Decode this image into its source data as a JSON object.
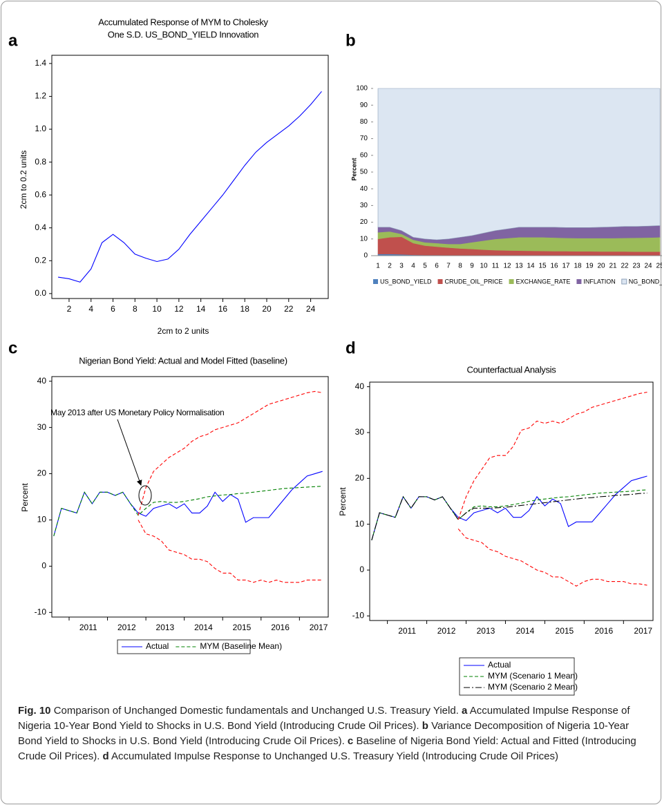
{
  "chart_data": [
    {
      "type": "line",
      "panel": "a",
      "title": [
        "Accumulated Response of MYM to Cholesky",
        "One S.D. US_BOND_YIELD Innovation"
      ],
      "y_label": "2cm to 0.2 units",
      "x_label": "2cm to 2 units",
      "x": [
        1,
        2,
        3,
        4,
        5,
        6,
        7,
        8,
        9,
        10,
        11,
        12,
        13,
        14,
        15,
        16,
        17,
        18,
        19,
        20,
        21,
        22,
        23,
        24,
        25
      ],
      "series": [
        {
          "color": "#0000ff",
          "dash": "solid",
          "values": [
            0.1,
            0.09,
            0.07,
            0.15,
            0.31,
            0.36,
            0.31,
            0.24,
            0.215,
            0.195,
            0.21,
            0.27,
            0.36,
            0.44,
            0.52,
            0.6,
            0.69,
            0.78,
            0.86,
            0.92,
            0.97,
            1.02,
            1.08,
            1.15,
            1.23
          ]
        }
      ],
      "xlim": [
        0.43,
        25.6
      ],
      "xticks": [
        2,
        4,
        6,
        8,
        10,
        12,
        14,
        16,
        18,
        20,
        22,
        24
      ],
      "ylim": [
        -0.03,
        1.45
      ],
      "yticks": [
        {
          "value": 0,
          "label": "0.0"
        },
        0.2,
        0.4,
        0.6,
        0.8,
        {
          "value": 1,
          "label": "1.0"
        },
        1.2,
        1.4
      ]
    },
    {
      "type": "stacked_area",
      "panel": "b",
      "y_label": "Percent",
      "categories": [
        1,
        2,
        3,
        4,
        5,
        6,
        7,
        8,
        9,
        10,
        11,
        12,
        13,
        14,
        15,
        16,
        17,
        18,
        19,
        20,
        21,
        22,
        23,
        24,
        25
      ],
      "series": [
        {
          "name": "US_BOND_YIELD",
          "color": "#4f81bd",
          "values": [
            1,
            1,
            0.8,
            0.5,
            0.4,
            0.4,
            0.3,
            0.3,
            0.3,
            0.3,
            0.3,
            0.3,
            0.3,
            0.3,
            0.3,
            0.3,
            0.3,
            0.3,
            0.3,
            0.3,
            0.3,
            0.3,
            0.3,
            0.3,
            0.3
          ]
        },
        {
          "name": "CRUDE_OIL_PRICE",
          "color": "#c0504d",
          "values": [
            9,
            10,
            10.5,
            7,
            5.6,
            5,
            4.5,
            4,
            3.7,
            3.3,
            3,
            2.8,
            2.7,
            2.6,
            2.5,
            2.4,
            2.4,
            2.3,
            2.3,
            2.2,
            2.2,
            2.2,
            2.1,
            2.1,
            2.1
          ]
        },
        {
          "name": "EXCHANGE_RATE",
          "color": "#9bbb59",
          "values": [
            4,
            3.5,
            1.7,
            2,
            2,
            2.1,
            2.2,
            2.7,
            4,
            5.4,
            6.7,
            7.4,
            8,
            8.1,
            8.2,
            8.1,
            7.9,
            7.9,
            7.9,
            8,
            8,
            8.1,
            8.3,
            8.4,
            8.6
          ]
        },
        {
          "name": "INFLATION",
          "color": "#8064a2",
          "values": [
            3,
            2.5,
            2,
            1.5,
            2,
            2,
            3,
            4,
            4,
            4.5,
            5,
            5.5,
            6,
            6,
            6,
            6.2,
            6.2,
            6.3,
            6.3,
            6.5,
            6.7,
            6.9,
            6.8,
            6.9,
            7
          ]
        },
        {
          "name": "NG_BOND_YIELD",
          "color": "#dce6f2",
          "values": [
            83,
            83,
            85,
            89,
            90,
            90.5,
            90,
            89,
            88,
            86.5,
            85,
            84,
            83,
            83,
            83,
            83,
            83.2,
            83.2,
            83.2,
            83,
            82.8,
            82.5,
            82.5,
            82.3,
            82
          ]
        }
      ],
      "ylim": [
        0,
        100
      ],
      "yticks": [
        0,
        10,
        20,
        30,
        40,
        50,
        60,
        70,
        80,
        90,
        100
      ]
    },
    {
      "type": "line",
      "panel": "c",
      "title": "Nigerian Bond Yield: Actual and Model Fitted (baseline)",
      "y_label": "Percent",
      "annotation": "May 2013 after US Monetary Policy Normalisation",
      "x": [
        2010.6,
        2010.8,
        2011.0,
        2011.2,
        2011.4,
        2011.6,
        2011.8,
        2012.0,
        2012.2,
        2012.4,
        2012.6,
        2012.8,
        2013.0,
        2013.2,
        2013.4,
        2013.6,
        2013.8,
        2014.0,
        2014.2,
        2014.4,
        2014.6,
        2014.8,
        2015.0,
        2015.2,
        2015.4,
        2015.6,
        2015.8,
        2016.0,
        2016.2,
        2016.4,
        2016.6,
        2016.8,
        2017.0,
        2017.2,
        2017.4,
        2017.6
      ],
      "series": [
        {
          "name": "Actual",
          "color": "#0000ff",
          "dash": "solid",
          "values": [
            6.5,
            12.5,
            12,
            11.5,
            16,
            13.5,
            16,
            16,
            15.3,
            16,
            13.5,
            11.5,
            10.8,
            12.5,
            13,
            13.5,
            12.5,
            13.5,
            11.5,
            11.5,
            13,
            16,
            14,
            15.5,
            14.5,
            9.5,
            10.5,
            10.5,
            10.5,
            12.5,
            14.5,
            16.5,
            18,
            19.5,
            20,
            20.5
          ]
        },
        {
          "name": "MYM (Baseline Mean)",
          "color": "#008000",
          "dash": "dashed",
          "values": [
            6.5,
            12.5,
            12,
            11.5,
            16,
            13.5,
            16,
            16,
            15.3,
            16,
            13.5,
            11,
            12.5,
            13.8,
            14,
            13.8,
            13.8,
            14,
            14.3,
            14.6,
            15,
            15.2,
            15.4,
            15.5,
            15.7,
            15.8,
            16,
            16.2,
            16.4,
            16.6,
            16.8,
            16.9,
            17,
            17.1,
            17.2,
            17.3
          ]
        },
        {
          "color": "#ff0000",
          "dash": "dashed",
          "values": [
            null,
            null,
            null,
            null,
            null,
            null,
            null,
            null,
            null,
            null,
            null,
            11,
            17,
            20.5,
            22,
            23.5,
            24.5,
            25.5,
            27,
            28,
            28.5,
            29.5,
            30,
            30.5,
            31,
            32,
            33,
            34,
            35,
            35.5,
            36,
            36.5,
            37,
            37.5,
            37.8,
            37.5
          ]
        },
        {
          "color": "#ff0000",
          "dash": "dashed",
          "values": [
            null,
            null,
            null,
            null,
            null,
            null,
            null,
            null,
            null,
            null,
            null,
            10,
            7,
            6.5,
            5.5,
            3.5,
            3,
            2.5,
            1.5,
            1.5,
            1,
            -0.5,
            -1.5,
            -1.5,
            -3,
            -3,
            -3.5,
            -3,
            -3.5,
            -3,
            -3.5,
            -3.5,
            -3.5,
            -3,
            -3,
            -3
          ]
        }
      ],
      "xlim": [
        2010.55,
        2017.75
      ],
      "xticks": [
        2011,
        2012,
        2013,
        2014,
        2015,
        2016,
        2017
      ],
      "ylim": [
        -11,
        41
      ],
      "yticks": [
        -10,
        0,
        10,
        20,
        30,
        40
      ]
    },
    {
      "type": "line",
      "panel": "d",
      "title": "Counterfactual Analysis",
      "y_label": "Percent",
      "x": [
        2010.6,
        2010.8,
        2011.0,
        2011.2,
        2011.4,
        2011.6,
        2011.8,
        2012.0,
        2012.2,
        2012.4,
        2012.6,
        2012.8,
        2013.0,
        2013.2,
        2013.4,
        2013.6,
        2013.8,
        2014.0,
        2014.2,
        2014.4,
        2014.6,
        2014.8,
        2015.0,
        2015.2,
        2015.4,
        2015.6,
        2015.8,
        2016.0,
        2016.2,
        2016.4,
        2016.6,
        2016.8,
        2017.0,
        2017.2,
        2017.4,
        2017.6
      ],
      "series": [
        {
          "name": "Actual",
          "color": "#0000ff",
          "dash": "solid",
          "values": [
            6.5,
            12.5,
            12,
            11.5,
            16,
            13.5,
            16,
            16,
            15.3,
            16,
            13.5,
            11.5,
            10.8,
            12.5,
            13,
            13.5,
            12.5,
            13.5,
            11.5,
            11.5,
            13,
            16,
            14,
            15.5,
            14.5,
            9.5,
            10.5,
            10.5,
            10.5,
            12.5,
            14.5,
            16.5,
            18,
            19.5,
            20,
            20.5
          ]
        },
        {
          "name": "MYM (Scenario 1 Mean)",
          "color": "#008000",
          "dash": "dashed",
          "values": [
            6.5,
            12.5,
            12,
            11.5,
            16,
            13.5,
            16,
            16,
            15.3,
            16,
            13.5,
            11,
            12.5,
            13.8,
            14,
            13.8,
            13.8,
            14,
            14.3,
            14.6,
            15,
            15.3,
            15.5,
            15.7,
            15.9,
            16,
            16.2,
            16.4,
            16.6,
            16.8,
            16.9,
            17,
            17.1,
            17.2,
            17.4,
            17.5
          ]
        },
        {
          "name": "MYM (Scenario 2 Mean)",
          "color": "#000000",
          "dash": "dashdot",
          "values": [
            6.5,
            12.5,
            12,
            11.5,
            16,
            13.5,
            16,
            16,
            15.3,
            16,
            13.5,
            11,
            12.5,
            13.5,
            13.5,
            13.5,
            13.6,
            13.7,
            13.9,
            14.1,
            14.3,
            14.5,
            14.7,
            14.9,
            15.1,
            15.3,
            15.5,
            15.7,
            15.8,
            16,
            16.1,
            16.3,
            16.4,
            16.5,
            16.7,
            16.8
          ]
        },
        {
          "color": "#ff0000",
          "dash": "dashed",
          "values": [
            null,
            null,
            null,
            null,
            null,
            null,
            null,
            null,
            null,
            null,
            null,
            11,
            16,
            19.5,
            22,
            24.5,
            25,
            25,
            27,
            30.5,
            31,
            32.5,
            32,
            32.5,
            32,
            33,
            34,
            34.5,
            35.5,
            36,
            36.5,
            37,
            37.5,
            38,
            38.5,
            38.8
          ]
        },
        {
          "color": "#ff0000",
          "dash": "dashed",
          "values": [
            null,
            null,
            null,
            null,
            null,
            null,
            null,
            null,
            null,
            null,
            null,
            9,
            7,
            6.5,
            6,
            4.5,
            4,
            3,
            2.5,
            2,
            1,
            0,
            -0.5,
            -1.5,
            -1.5,
            -2.5,
            -3.5,
            -2.5,
            -2,
            -2,
            -2.5,
            -2.5,
            -2.5,
            -3,
            -3,
            -3.3
          ]
        }
      ],
      "xlim": [
        2010.55,
        2017.75
      ],
      "xticks": [
        2011,
        2012,
        2013,
        2014,
        2015,
        2016,
        2017
      ],
      "ylim": [
        -11,
        41
      ],
      "yticks": [
        -10,
        0,
        10,
        20,
        30,
        40
      ]
    }
  ],
  "caption": {
    "label": "Fig. 10",
    "title": "Comparison of Unchanged Domestic fundamentals and Unchanged U.S. Treasury Yield.",
    "parts": [
      {
        "label": "a",
        "text": "Accumulated Impulse Response of Nigeria 10-Year Bond Yield to Shocks in U.S. Bond Yield (Introducing Crude Oil Prices)."
      },
      {
        "label": "b",
        "text": "Variance Decomposition of Nigeria 10-Year Bond Yield to Shocks in U.S. Bond Yield (Introducing Crude Oil Prices)."
      },
      {
        "label": "c",
        "text": "Baseline of Nigeria Bond Yield: Actual and Fitted (Introducing Crude Oil Prices)."
      },
      {
        "label": "d",
        "text": "Accumulated Impulse Response to Unchanged U.S. Treasury Yield (Introducing Crude Oil Prices)"
      }
    ]
  }
}
